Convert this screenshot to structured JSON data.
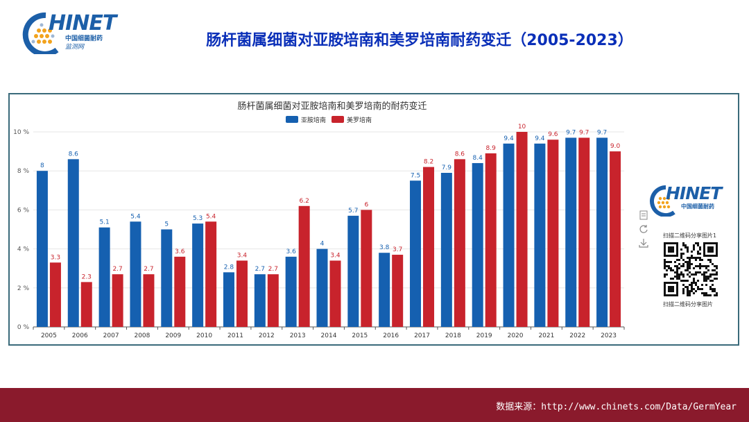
{
  "header": {
    "logo_text": "HINET",
    "logo_cn": "中国细菌耐药",
    "logo_cn2": "监测网",
    "title": "肠杆菌属细菌对亚胺培南和美罗培南耐药变迁（2005-2023）"
  },
  "side_panel": {
    "logo_text": "HINET",
    "logo_cn": "中国细菌耐药",
    "icons": [
      "document-icon",
      "refresh-icon",
      "download-icon"
    ],
    "qr_label_top": "扫描二维码分享图片1",
    "qr_label_bottom": "扫描二维码分享图片"
  },
  "chart_data": {
    "type": "bar",
    "title": "肠杆菌属细菌对亚胺培南和美罗培南的耐药变迁",
    "categories": [
      "2005",
      "2006",
      "2007",
      "2008",
      "2009",
      "2010",
      "2011",
      "2012",
      "2013",
      "2014",
      "2015",
      "2016",
      "2017",
      "2018",
      "2019",
      "2020",
      "2021",
      "2022",
      "2023"
    ],
    "series": [
      {
        "name": "亚胺培南",
        "color": "#1560b0",
        "values": [
          8,
          8.6,
          5.1,
          5.4,
          5,
          5.3,
          2.8,
          2.7,
          3.6,
          4,
          5.7,
          3.8,
          7.5,
          7.9,
          8.4,
          9.4,
          9.4,
          9.7,
          9.7
        ]
      },
      {
        "name": "美罗培南",
        "color": "#c8232c",
        "values": [
          3.3,
          2.3,
          2.7,
          2.7,
          3.6,
          5.4,
          3.4,
          2.7,
          6.2,
          3.4,
          6,
          3.7,
          8.2,
          8.6,
          8.9,
          10,
          9.6,
          9.7,
          9.0
        ]
      }
    ],
    "data_labels": [
      [
        "8",
        "8.6",
        "5.1",
        "5.4",
        "5",
        "5.3",
        "2.8",
        "2.7",
        "3.6",
        "4",
        "5.7",
        "3.8",
        "7.5",
        "7.9",
        "8.4",
        "9.4",
        "9.4",
        "9.7",
        "9.7"
      ],
      [
        "3.3",
        "2.3",
        "2.7",
        "2.7",
        "3.6",
        "5.4",
        "3.4",
        "2.7",
        "6.2",
        "3.4",
        "6",
        "3.7",
        "8.2",
        "8.6",
        "8.9",
        "10",
        "9.6",
        "9.7",
        "9.0"
      ]
    ],
    "yticks": [
      "0 %",
      "2 %",
      "4 %",
      "6 %",
      "8 %",
      "10 %"
    ],
    "ylim": [
      0,
      10
    ],
    "grid": true,
    "legend_position": "top-center"
  },
  "footer": {
    "source": "数据来源：http://www.chinets.com/Data/GermYear"
  }
}
